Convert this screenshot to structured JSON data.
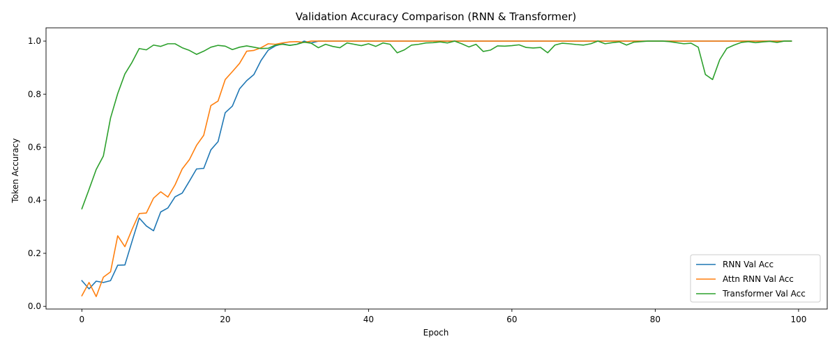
{
  "chart_data": {
    "type": "line",
    "title": "Validation Accuracy Comparison (RNN & Transformer)",
    "xlabel": "Epoch",
    "ylabel": "Token Accuracy",
    "xlim": [
      -5,
      104
    ],
    "ylim": [
      -0.01,
      1.05
    ],
    "xticks": [
      0,
      20,
      40,
      60,
      80,
      100
    ],
    "yticks": [
      0.0,
      0.2,
      0.4,
      0.6,
      0.8,
      1.0
    ],
    "xtick_labels": [
      "0",
      "20",
      "40",
      "60",
      "80",
      "100"
    ],
    "ytick_labels": [
      "0.0",
      "0.2",
      "0.4",
      "0.6",
      "0.8",
      "1.0"
    ],
    "grid": false,
    "legend_position": "lower-right",
    "series": [
      {
        "name": "RNN Val Acc",
        "color": "#1f77b4",
        "values": [
          0.097,
          0.066,
          0.095,
          0.09,
          0.097,
          0.155,
          0.156,
          0.245,
          0.333,
          0.303,
          0.285,
          0.356,
          0.371,
          0.413,
          0.427,
          0.472,
          0.518,
          0.52,
          0.59,
          0.621,
          0.73,
          0.755,
          0.82,
          0.851,
          0.874,
          0.927,
          0.966,
          0.982,
          0.99,
          0.984,
          0.988,
          1.0,
          0.993,
          1.0,
          1.0,
          1.0,
          1.0,
          1.0,
          1.0,
          1.0,
          1.0,
          1.0,
          1.0,
          1.0,
          1.0,
          1.0,
          1.0,
          1.0,
          1.0,
          1.0,
          1.0,
          1.0,
          1.0,
          1.0,
          1.0,
          1.0,
          1.0,
          1.0,
          1.0,
          1.0,
          1.0,
          1.0,
          1.0,
          1.0,
          1.0,
          1.0,
          1.0,
          1.0,
          1.0,
          1.0,
          1.0,
          1.0,
          1.0,
          1.0,
          1.0,
          1.0,
          1.0,
          1.0,
          1.0,
          1.0,
          1.0,
          1.0,
          1.0,
          1.0,
          1.0,
          1.0,
          1.0,
          1.0,
          1.0,
          1.0,
          1.0,
          1.0,
          1.0,
          1.0,
          1.0,
          1.0,
          1.0,
          1.0,
          1.0,
          1.0
        ]
      },
      {
        "name": "Attn RNN Val Acc",
        "color": "#ff7f0e",
        "values": [
          0.04,
          0.09,
          0.037,
          0.11,
          0.13,
          0.266,
          0.225,
          0.29,
          0.35,
          0.352,
          0.408,
          0.432,
          0.412,
          0.458,
          0.518,
          0.553,
          0.607,
          0.645,
          0.757,
          0.774,
          0.855,
          0.885,
          0.916,
          0.962,
          0.965,
          0.975,
          0.99,
          0.988,
          0.993,
          0.997,
          0.998,
          0.995,
          1.0,
          1.0,
          1.0,
          1.0,
          1.0,
          1.0,
          1.0,
          1.0,
          1.0,
          1.0,
          1.0,
          1.0,
          1.0,
          1.0,
          1.0,
          1.0,
          1.0,
          1.0,
          1.0,
          1.0,
          1.0,
          1.0,
          1.0,
          1.0,
          1.0,
          1.0,
          1.0,
          1.0,
          1.0,
          1.0,
          1.0,
          1.0,
          1.0,
          1.0,
          1.0,
          1.0,
          1.0,
          1.0,
          1.0,
          1.0,
          1.0,
          1.0,
          1.0,
          1.0,
          1.0,
          1.0,
          1.0,
          1.0,
          1.0,
          1.0,
          1.0,
          1.0,
          1.0,
          1.0,
          1.0,
          1.0,
          1.0,
          1.0,
          1.0,
          1.0,
          1.0,
          1.0,
          1.0,
          1.0,
          1.0,
          1.0,
          1.0,
          1.0
        ]
      },
      {
        "name": "Transformer Val Acc",
        "color": "#2ca02c",
        "values": [
          0.368,
          0.441,
          0.516,
          0.567,
          0.71,
          0.802,
          0.876,
          0.92,
          0.972,
          0.967,
          0.985,
          0.98,
          0.99,
          0.99,
          0.975,
          0.965,
          0.95,
          0.962,
          0.977,
          0.984,
          0.981,
          0.968,
          0.977,
          0.982,
          0.977,
          0.972,
          0.973,
          0.985,
          0.988,
          0.984,
          0.988,
          0.996,
          0.992,
          0.975,
          0.988,
          0.98,
          0.975,
          0.993,
          0.988,
          0.983,
          0.99,
          0.98,
          0.993,
          0.988,
          0.956,
          0.967,
          0.985,
          0.988,
          0.993,
          0.994,
          0.997,
          0.993,
          1.0,
          0.99,
          0.978,
          0.988,
          0.961,
          0.966,
          0.982,
          0.981,
          0.983,
          0.986,
          0.976,
          0.974,
          0.976,
          0.956,
          0.985,
          0.992,
          0.99,
          0.987,
          0.985,
          0.99,
          1.0,
          0.99,
          0.994,
          0.997,
          0.985,
          0.996,
          0.998,
          1.0,
          1.0,
          1.0,
          0.998,
          0.994,
          0.99,
          0.992,
          0.977,
          0.874,
          0.855,
          0.93,
          0.973,
          0.985,
          0.995,
          0.998,
          0.994,
          0.997,
          0.999,
          0.995,
          1.0,
          1.0
        ]
      }
    ]
  }
}
